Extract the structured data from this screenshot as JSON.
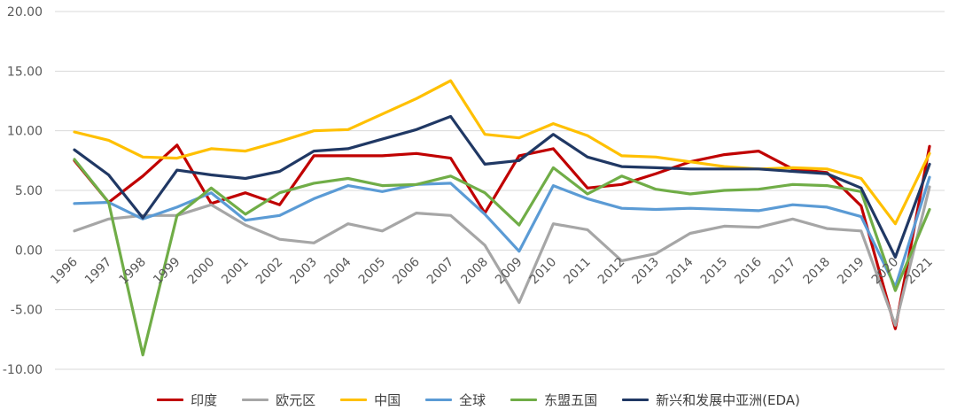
{
  "chart_data": {
    "type": "line",
    "title": "",
    "xlabel": "",
    "ylabel": "",
    "ylim": [
      -10,
      20
    ],
    "y_ticks": [
      "-10.00",
      "-5.00",
      "0.00",
      "5.00",
      "10.00",
      "15.00",
      "20.00"
    ],
    "grid": "horizontal",
    "legend_position": "bottom",
    "x": [
      "1996",
      "1997",
      "1998",
      "1999",
      "2000",
      "2001",
      "2002",
      "2003",
      "2004",
      "2005",
      "2006",
      "2007",
      "2008",
      "2009",
      "2010",
      "2011",
      "2012",
      "2013",
      "2014",
      "2015",
      "2016",
      "2017",
      "2018",
      "2019",
      "2020",
      "2021"
    ],
    "series": [
      {
        "name": "印度",
        "color": "#c00000",
        "values": [
          7.5,
          4.0,
          6.2,
          8.8,
          3.9,
          4.8,
          3.8,
          7.9,
          7.9,
          7.9,
          8.1,
          7.7,
          3.1,
          7.9,
          8.5,
          5.2,
          5.5,
          6.4,
          7.4,
          8.0,
          8.3,
          6.8,
          6.5,
          3.7,
          -6.6,
          8.7
        ]
      },
      {
        "name": "欧元区",
        "color": "#a6a6a6",
        "values": [
          1.6,
          2.6,
          2.9,
          2.9,
          3.8,
          2.1,
          0.9,
          0.6,
          2.2,
          1.6,
          3.1,
          2.9,
          0.4,
          -4.4,
          2.2,
          1.7,
          -0.9,
          -0.3,
          1.4,
          2.0,
          1.9,
          2.6,
          1.8,
          1.6,
          -6.3,
          5.3
        ]
      },
      {
        "name": "中国",
        "color": "#ffc000",
        "values": [
          9.9,
          9.2,
          7.8,
          7.7,
          8.5,
          8.3,
          9.1,
          10.0,
          10.1,
          11.4,
          12.7,
          14.2,
          9.7,
          9.4,
          10.6,
          9.6,
          7.9,
          7.8,
          7.4,
          7.0,
          6.8,
          6.9,
          6.8,
          6.0,
          2.2,
          8.1
        ]
      },
      {
        "name": "全球",
        "color": "#5b9bd5",
        "values": [
          3.9,
          4.0,
          2.6,
          3.6,
          4.8,
          2.5,
          2.9,
          4.3,
          5.4,
          4.9,
          5.5,
          5.6,
          3.0,
          -0.1,
          5.4,
          4.3,
          3.5,
          3.4,
          3.5,
          3.4,
          3.3,
          3.8,
          3.6,
          2.8,
          -3.1,
          6.1
        ]
      },
      {
        "name": "东盟五国",
        "color": "#70ad47",
        "values": [
          7.6,
          4.0,
          -8.8,
          2.9,
          5.2,
          3.0,
          4.8,
          5.6,
          6.0,
          5.4,
          5.5,
          6.2,
          4.8,
          2.1,
          6.9,
          4.7,
          6.2,
          5.1,
          4.7,
          5.0,
          5.1,
          5.5,
          5.4,
          4.9,
          -3.4,
          3.4
        ]
      },
      {
        "name": "新兴和发展中亚洲(EDA)",
        "color": "#203864",
        "values": [
          8.4,
          6.3,
          2.7,
          6.7,
          6.3,
          6.0,
          6.6,
          8.3,
          8.5,
          9.3,
          10.1,
          11.2,
          7.2,
          7.5,
          9.7,
          7.8,
          7.0,
          6.9,
          6.8,
          6.8,
          6.8,
          6.6,
          6.4,
          5.2,
          -0.6,
          7.2
        ]
      }
    ]
  }
}
